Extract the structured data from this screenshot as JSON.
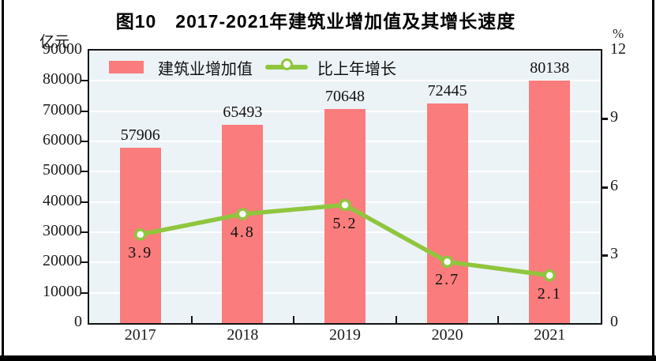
{
  "page": {
    "unit_left": "亿元",
    "unit_right": "%"
  },
  "chart_data": {
    "type": "combo",
    "title": "图10　2017-2021年建筑业增加值及其增长速度",
    "categories": [
      "2017",
      "2018",
      "2019",
      "2020",
      "2021"
    ],
    "series": [
      {
        "name": "建筑业增加值",
        "type": "bar",
        "axis": "left",
        "values": [
          57906,
          65493,
          70648,
          72445,
          80138
        ],
        "labels": [
          "57906",
          "65493",
          "70648",
          "72445",
          "80138"
        ],
        "color": "#FA7C7C"
      },
      {
        "name": "比上年增长",
        "type": "line",
        "axis": "right",
        "values": [
          3.9,
          4.8,
          5.2,
          2.7,
          2.1
        ],
        "labels": [
          "3.9",
          "4.8",
          "5.2",
          "2.7",
          "2.1"
        ],
        "color": "#8FC63D",
        "marker": "circle-white-fill"
      }
    ],
    "axes": {
      "left": {
        "unit": "亿元",
        "min": 0,
        "max": 90000,
        "step": 10000,
        "tick_labels": [
          "90000",
          "80000",
          "70000",
          "60000",
          "50000",
          "40000",
          "30000",
          "20000",
          "10000",
          "0"
        ]
      },
      "right": {
        "unit": "%",
        "min": 0,
        "max": 12,
        "step": 3,
        "tick_labels": [
          "12",
          "9",
          "6",
          "3",
          "0"
        ]
      }
    },
    "grid": true,
    "grid_color": "#FFFFFF",
    "background": "#ECF3F7",
    "legend_position": "top-left-inside"
  }
}
